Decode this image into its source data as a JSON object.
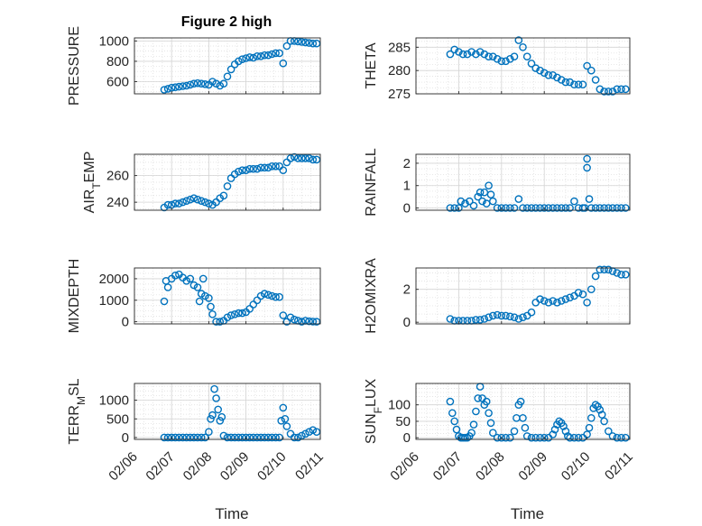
{
  "title": "Figure 2 high",
  "colors": {
    "marker": "#0072BD",
    "axis": "#262626",
    "grid": "#dcdcdc"
  },
  "chart_data": [
    {
      "type": "scatter",
      "ylabel": "PRESSURE",
      "ylabel_sub": "",
      "ylim": [
        480,
        1030
      ],
      "yticks": [
        600,
        800,
        1000
      ],
      "ytick_labels": [
        "600",
        "800",
        "1000"
      ],
      "xlim": [
        "02/06",
        "02/11"
      ],
      "xticks": [
        "02/06",
        "02/07",
        "02/08",
        "02/09",
        "02/10",
        "02/11"
      ],
      "xtick_labels_shown": false,
      "xlabel": "",
      "x_day": [
        6.8,
        6.9,
        7.0,
        7.1,
        7.2,
        7.3,
        7.4,
        7.5,
        7.6,
        7.7,
        7.8,
        7.9,
        8.0,
        8.1,
        8.2,
        8.3,
        8.4,
        8.5,
        8.6,
        8.7,
        8.8,
        8.9,
        9.0,
        9.1,
        9.2,
        9.3,
        9.4,
        9.5,
        9.6,
        9.7,
        9.8,
        9.9,
        10.0,
        10.1,
        10.2,
        10.3,
        10.4,
        10.5,
        10.6,
        10.7,
        10.8,
        10.9
      ],
      "y": [
        520,
        530,
        540,
        545,
        550,
        555,
        560,
        570,
        580,
        585,
        580,
        575,
        570,
        600,
        580,
        560,
        580,
        650,
        720,
        770,
        800,
        820,
        830,
        840,
        835,
        850,
        850,
        860,
        860,
        870,
        880,
        880,
        780,
        950,
        1000,
        1000,
        995,
        990,
        985,
        980,
        975,
        975
      ]
    },
    {
      "type": "scatter",
      "ylabel": "THETA",
      "ylabel_sub": "",
      "ylim": [
        275,
        287
      ],
      "yticks": [
        275,
        280,
        285
      ],
      "ytick_labels": [
        "275",
        "280",
        "285"
      ],
      "xlim": [
        "02/06",
        "02/11"
      ],
      "xticks": [
        "02/06",
        "02/07",
        "02/08",
        "02/09",
        "02/10",
        "02/11"
      ],
      "xtick_labels_shown": false,
      "xlabel": "",
      "x_day": [
        6.8,
        6.9,
        7.0,
        7.1,
        7.2,
        7.3,
        7.4,
        7.5,
        7.6,
        7.7,
        7.8,
        7.9,
        8.0,
        8.1,
        8.2,
        8.3,
        8.4,
        8.5,
        8.6,
        8.7,
        8.8,
        8.9,
        9.0,
        9.1,
        9.2,
        9.3,
        9.4,
        9.5,
        9.6,
        9.7,
        9.8,
        9.9,
        10.0,
        10.1,
        10.2,
        10.3,
        10.4,
        10.5,
        10.6,
        10.7,
        10.8,
        10.9
      ],
      "y": [
        283.5,
        284.5,
        284,
        283.5,
        283.5,
        284,
        283.5,
        284,
        283.5,
        283,
        283,
        282.5,
        282,
        282,
        282.5,
        283,
        286.5,
        285,
        283,
        281.5,
        280.5,
        280,
        279.5,
        279,
        279,
        278.5,
        278,
        277.5,
        277.5,
        277,
        277,
        277,
        281,
        280,
        278,
        276,
        275.5,
        275.5,
        275.5,
        276,
        276,
        276
      ]
    },
    {
      "type": "scatter",
      "ylabel": "AIR",
      "ylabel_sub": "T",
      "ylabel_rest": "EMP",
      "ylim": [
        234,
        276
      ],
      "yticks": [
        240,
        260
      ],
      "ytick_labels": [
        "240",
        "260"
      ],
      "xlim": [
        "02/06",
        "02/11"
      ],
      "xticks": [
        "02/06",
        "02/07",
        "02/08",
        "02/09",
        "02/10",
        "02/11"
      ],
      "xtick_labels_shown": false,
      "xlabel": "",
      "x_day": [
        6.8,
        6.9,
        7.0,
        7.1,
        7.2,
        7.3,
        7.4,
        7.5,
        7.6,
        7.7,
        7.8,
        7.9,
        8.0,
        8.1,
        8.2,
        8.3,
        8.4,
        8.5,
        8.6,
        8.7,
        8.8,
        8.9,
        9.0,
        9.1,
        9.2,
        9.3,
        9.4,
        9.5,
        9.6,
        9.7,
        9.8,
        9.9,
        10.0,
        10.1,
        10.2,
        10.3,
        10.4,
        10.5,
        10.6,
        10.7,
        10.8,
        10.9
      ],
      "y": [
        236,
        238,
        238,
        239,
        239,
        240,
        241,
        242,
        243,
        242,
        241,
        240,
        239,
        238,
        240,
        243,
        245,
        252,
        258,
        261,
        263,
        264,
        264,
        265,
        265,
        265,
        266,
        266,
        266,
        267,
        267,
        267,
        264,
        270,
        273,
        274,
        273,
        273,
        273,
        273,
        272,
        272
      ]
    },
    {
      "type": "scatter",
      "ylabel": "RAINFALL",
      "ylabel_sub": "",
      "ylim": [
        -0.1,
        2.4
      ],
      "yticks": [
        0,
        1,
        2
      ],
      "ytick_labels": [
        "0",
        "1",
        "2"
      ],
      "xlim": [
        "02/06",
        "02/11"
      ],
      "xticks": [
        "02/06",
        "02/07",
        "02/08",
        "02/09",
        "02/10",
        "02/11"
      ],
      "xtick_labels_shown": false,
      "xlabel": "",
      "x_day": [
        6.8,
        6.9,
        7.0,
        7.05,
        7.15,
        7.25,
        7.35,
        7.45,
        7.5,
        7.55,
        7.6,
        7.65,
        7.7,
        7.75,
        7.8,
        7.9,
        8.0,
        8.1,
        8.2,
        8.3,
        8.4,
        8.5,
        8.6,
        8.7,
        8.8,
        8.9,
        9.0,
        9.1,
        9.2,
        9.3,
        9.4,
        9.5,
        9.6,
        9.7,
        9.8,
        9.9,
        9.95,
        10.0,
        10.0,
        10.05,
        10.1,
        10.2,
        10.3,
        10.4,
        10.5,
        10.6,
        10.7,
        10.8,
        10.9
      ],
      "y": [
        0,
        0,
        0,
        0.3,
        0.2,
        0.3,
        0.1,
        0.5,
        0.7,
        0.3,
        0.7,
        0.2,
        1.0,
        0.6,
        0.3,
        0,
        0,
        0,
        0,
        0,
        0.4,
        0,
        0,
        0,
        0,
        0,
        0,
        0,
        0,
        0,
        0,
        0,
        0,
        0.3,
        0,
        0,
        0,
        2.2,
        1.8,
        0.4,
        0,
        0,
        0,
        0,
        0,
        0,
        0,
        0,
        0
      ]
    },
    {
      "type": "scatter",
      "ylabel": "MIXDEPTH",
      "ylabel_sub": "",
      "ylim": [
        -100,
        2500
      ],
      "yticks": [
        0,
        1000,
        2000
      ],
      "ytick_labels": [
        "0",
        "1000",
        "2000"
      ],
      "xlim": [
        "02/06",
        "02/11"
      ],
      "xticks": [
        "02/06",
        "02/07",
        "02/08",
        "02/09",
        "02/10",
        "02/11"
      ],
      "xtick_labels_shown": false,
      "xlabel": "",
      "x_day": [
        6.8,
        6.85,
        6.9,
        7.0,
        7.1,
        7.2,
        7.3,
        7.4,
        7.5,
        7.6,
        7.7,
        7.75,
        7.8,
        7.85,
        7.9,
        8.0,
        8.05,
        8.1,
        8.2,
        8.3,
        8.4,
        8.5,
        8.6,
        8.7,
        8.8,
        8.9,
        9.0,
        9.1,
        9.2,
        9.3,
        9.4,
        9.5,
        9.6,
        9.7,
        9.8,
        9.9,
        10.0,
        10.1,
        10.2,
        10.3,
        10.4,
        10.5,
        10.6,
        10.7,
        10.8,
        10.9
      ],
      "y": [
        950,
        1900,
        1600,
        2000,
        2150,
        2200,
        2050,
        1900,
        2000,
        1700,
        1600,
        950,
        1300,
        2000,
        1200,
        1100,
        700,
        350,
        0,
        0,
        50,
        200,
        300,
        350,
        400,
        400,
        450,
        600,
        800,
        1000,
        1200,
        1300,
        1250,
        1200,
        1150,
        1150,
        300,
        0,
        200,
        100,
        50,
        0,
        50,
        20,
        10,
        0
      ]
    },
    {
      "type": "scatter",
      "ylabel": "H2OMIXRA",
      "ylabel_sub": "",
      "ylim": [
        -0.1,
        3.3
      ],
      "yticks": [
        0,
        2
      ],
      "ytick_labels": [
        "0",
        "2"
      ],
      "xlim": [
        "02/06",
        "02/11"
      ],
      "xticks": [
        "02/06",
        "02/07",
        "02/08",
        "02/09",
        "02/10",
        "02/11"
      ],
      "xtick_labels_shown": false,
      "xlabel": "",
      "x_day": [
        6.8,
        6.9,
        7.0,
        7.1,
        7.2,
        7.3,
        7.4,
        7.5,
        7.6,
        7.7,
        7.8,
        7.9,
        8.0,
        8.1,
        8.2,
        8.3,
        8.4,
        8.5,
        8.6,
        8.7,
        8.8,
        8.9,
        9.0,
        9.1,
        9.2,
        9.3,
        9.4,
        9.5,
        9.6,
        9.7,
        9.8,
        9.9,
        10.0,
        10.1,
        10.2,
        10.3,
        10.4,
        10.5,
        10.6,
        10.7,
        10.8,
        10.9
      ],
      "y": [
        0.2,
        0.1,
        0.1,
        0.1,
        0.1,
        0.1,
        0.15,
        0.15,
        0.2,
        0.3,
        0.4,
        0.45,
        0.4,
        0.4,
        0.35,
        0.3,
        0.2,
        0.3,
        0.4,
        0.6,
        1.2,
        1.4,
        1.3,
        1.2,
        1.3,
        1.2,
        1.3,
        1.4,
        1.5,
        1.6,
        1.8,
        1.7,
        1.2,
        2.0,
        2.8,
        3.2,
        3.2,
        3.2,
        3.1,
        3.0,
        2.9,
        2.9
      ]
    },
    {
      "type": "scatter",
      "ylabel": "TERR",
      "ylabel_sub": "M",
      "ylabel_rest": "SL",
      "ylim": [
        -50,
        1450
      ],
      "yticks": [
        0,
        500,
        1000
      ],
      "ytick_labels": [
        "0",
        "500",
        "1000"
      ],
      "xlim": [
        "02/06",
        "02/11"
      ],
      "xticks": [
        "02/06",
        "02/07",
        "02/08",
        "02/09",
        "02/10",
        "02/11"
      ],
      "xtick_labels_shown": true,
      "xlabel": "Time",
      "x_day": [
        6.8,
        6.9,
        7.0,
        7.1,
        7.2,
        7.3,
        7.4,
        7.5,
        7.6,
        7.7,
        7.8,
        7.9,
        8.0,
        8.05,
        8.1,
        8.15,
        8.2,
        8.25,
        8.3,
        8.35,
        8.4,
        8.5,
        8.6,
        8.7,
        8.8,
        8.9,
        9.0,
        9.1,
        9.2,
        9.3,
        9.4,
        9.5,
        9.6,
        9.7,
        9.8,
        9.9,
        9.95,
        10.0,
        10.05,
        10.1,
        10.2,
        10.3,
        10.4,
        10.5,
        10.6,
        10.7,
        10.8,
        10.9
      ],
      "y": [
        0,
        0,
        0,
        0,
        0,
        0,
        0,
        0,
        0,
        0,
        0,
        0,
        150,
        500,
        600,
        1300,
        1050,
        750,
        450,
        550,
        50,
        0,
        0,
        0,
        0,
        0,
        0,
        0,
        0,
        0,
        0,
        0,
        0,
        0,
        0,
        0,
        450,
        800,
        500,
        300,
        100,
        0,
        0,
        50,
        100,
        150,
        200,
        150
      ]
    },
    {
      "type": "scatter",
      "ylabel": "SUN",
      "ylabel_sub": "F",
      "ylabel_rest": "LUX",
      "ylim": [
        -5,
        165
      ],
      "yticks": [
        0,
        50,
        100
      ],
      "ytick_labels": [
        "0",
        "50",
        "100"
      ],
      "xlim": [
        "02/06",
        "02/11"
      ],
      "xticks": [
        "02/06",
        "02/07",
        "02/08",
        "02/09",
        "02/10",
        "02/11"
      ],
      "xtick_labels_shown": true,
      "xlabel": "Time",
      "x_day": [
        6.8,
        6.85,
        6.9,
        6.95,
        7.0,
        7.05,
        7.1,
        7.15,
        7.2,
        7.25,
        7.3,
        7.35,
        7.4,
        7.45,
        7.5,
        7.55,
        7.6,
        7.65,
        7.7,
        7.75,
        7.8,
        7.9,
        8.0,
        8.1,
        8.2,
        8.3,
        8.35,
        8.4,
        8.45,
        8.5,
        8.55,
        8.6,
        8.7,
        8.8,
        8.9,
        9.0,
        9.1,
        9.2,
        9.25,
        9.3,
        9.35,
        9.4,
        9.45,
        9.5,
        9.55,
        9.6,
        9.7,
        9.8,
        9.9,
        10.0,
        10.05,
        10.1,
        10.15,
        10.2,
        10.25,
        10.3,
        10.35,
        10.4,
        10.5,
        10.6,
        10.7,
        10.8,
        10.9
      ],
      "y": [
        110,
        75,
        50,
        25,
        5,
        0,
        0,
        0,
        0,
        5,
        15,
        40,
        80,
        120,
        155,
        120,
        100,
        110,
        75,
        45,
        15,
        0,
        0,
        0,
        0,
        20,
        60,
        100,
        110,
        60,
        30,
        5,
        0,
        0,
        0,
        0,
        0,
        10,
        25,
        40,
        50,
        45,
        35,
        20,
        5,
        0,
        0,
        0,
        0,
        10,
        30,
        60,
        90,
        100,
        95,
        85,
        70,
        50,
        20,
        5,
        0,
        0,
        0
      ]
    }
  ]
}
